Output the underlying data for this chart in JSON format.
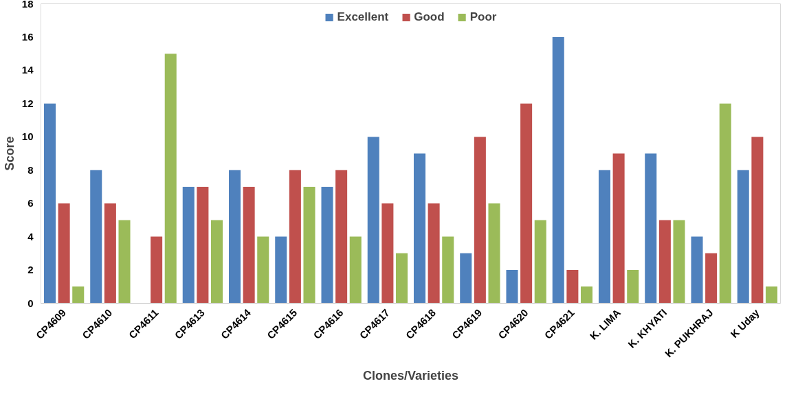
{
  "chart_data": {
    "type": "bar",
    "xlabel": "Clones/Varieties",
    "ylabel": "Score",
    "categories": [
      "CP4609",
      "CP4610",
      "CP4611",
      "CP4613",
      "CP4614",
      "CP4615",
      "CP4616",
      "CP4617",
      "CP4618",
      "CP4619",
      "CP4620",
      "CP4621",
      "K. LIMA",
      "K. KHYATI",
      "K. PUKHRAJ",
      "K Uday"
    ],
    "series": [
      {
        "name": "Excellent",
        "color": "#4f81bd",
        "values": [
          12,
          8,
          0,
          7,
          8,
          4,
          7,
          10,
          9,
          3,
          2,
          16,
          8,
          9,
          4,
          8
        ]
      },
      {
        "name": "Good",
        "color": "#c0504d",
        "values": [
          6,
          6,
          4,
          7,
          7,
          8,
          8,
          6,
          6,
          10,
          12,
          2,
          9,
          5,
          3,
          10
        ]
      },
      {
        "name": "Poor",
        "color": "#9bbb59",
        "values": [
          1,
          5,
          15,
          5,
          4,
          7,
          4,
          3,
          4,
          6,
          5,
          1,
          2,
          5,
          12,
          1
        ]
      }
    ],
    "ylim": [
      0,
      18
    ],
    "yticks": [
      0,
      2,
      4,
      6,
      8,
      10,
      12,
      14,
      16,
      18
    ],
    "grid": false,
    "legend": "top"
  }
}
